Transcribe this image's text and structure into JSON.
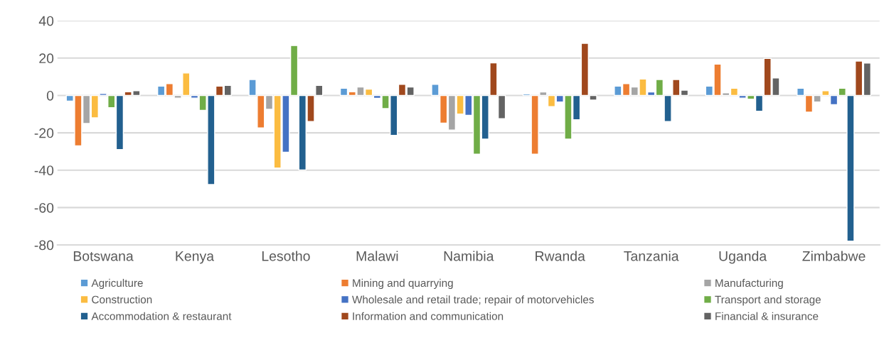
{
  "chart_data": {
    "type": "bar",
    "categories": [
      "Botswana",
      "Kenya",
      "Lesotho",
      "Malawi",
      "Namibia",
      "Rwanda",
      "Tanzania",
      "Uganda",
      "Zimbabwe"
    ],
    "series": [
      {
        "name": "Agriculture",
        "color": "#5b9bd5",
        "values": [
          -3,
          5,
          8.5,
          3.9,
          5.9,
          0.8,
          5,
          5,
          3.9
        ]
      },
      {
        "name": "Mining and quarrying",
        "color": "#ed7d31",
        "values": [
          -27,
          6.3,
          -17.4,
          2,
          -14.8,
          -31.4,
          6.3,
          16.8,
          -8.9
        ]
      },
      {
        "name": "Manufacturing",
        "color": "#a5a5a5",
        "values": [
          -15,
          -1.4,
          -7.4,
          4.5,
          -18.5,
          1.9,
          4.5,
          1.4,
          -3.5
        ]
      },
      {
        "name": "Construction",
        "color": "#fbbc41",
        "values": [
          -12,
          12,
          -38.8,
          3.4,
          -10,
          -6,
          8.8,
          3.9,
          2.5
        ]
      },
      {
        "name": "Wholesale and retail trade; repair of motorvehicles",
        "color": "#4472c4",
        "values": [
          1,
          -1.4,
          -30.4,
          -1.5,
          -10.6,
          -3.5,
          1.9,
          -1.4,
          -4.9
        ]
      },
      {
        "name": "Transport and storage",
        "color": "#70ad47",
        "values": [
          -6.5,
          -8,
          26.7,
          -7,
          -31.4,
          -23.4,
          8.5,
          -2,
          3.9
        ]
      },
      {
        "name": "Accommodation & restaurant",
        "color": "#22608f",
        "values": [
          -29,
          -47.7,
          -39.9,
          -21.4,
          -23.4,
          -13,
          -14,
          -8.4,
          -78
        ]
      },
      {
        "name": "Information and communication",
        "color": "#a0481d",
        "values": [
          2,
          5,
          -14,
          5.9,
          17.4,
          27.9,
          8.5,
          19.8,
          18.4
        ]
      },
      {
        "name": "Financial & insurance",
        "color": "#636363",
        "values": [
          2.5,
          5.4,
          5.4,
          4.5,
          -12.4,
          -2.5,
          2.8,
          9.4,
          17.3
        ]
      }
    ],
    "ylim": [
      -80,
      40
    ],
    "yticks": [
      -80,
      -60,
      -40,
      -20,
      0,
      20,
      40
    ],
    "grid": "y",
    "legend": "bottom"
  }
}
